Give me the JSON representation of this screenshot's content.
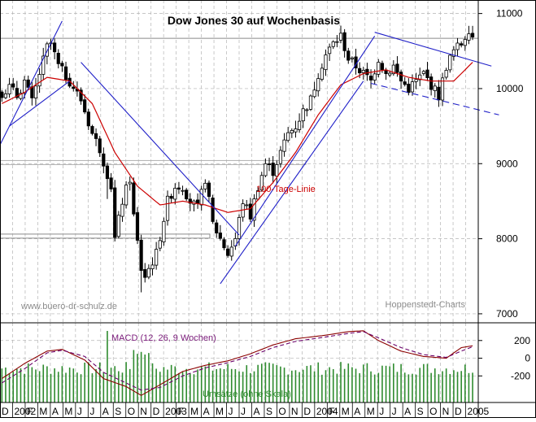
{
  "chart_data": [
    {
      "type": "candlestick",
      "title": "Dow Jones 30 auf Wochenbasis",
      "watermark_left": "www.buero-dr-schulz.de",
      "watermark_right": "Hoppenstedt-Charts",
      "y_axis_position": "right",
      "ylim": [
        6880,
        11180
      ],
      "yticks": [
        7000,
        8000,
        9000,
        10000,
        11000
      ],
      "ytick_labels": [
        "7000",
        "8000",
        "9000",
        "10000",
        "11000"
      ],
      "x_month_labels": [
        "D",
        "2002",
        "F",
        "M",
        "A",
        "M",
        "J",
        "J",
        "A",
        "S",
        "O",
        "N",
        "D",
        "2003",
        "F",
        "M",
        "A",
        "M",
        "J",
        "J",
        "A",
        "S",
        "O",
        "N",
        "D",
        "2004",
        "F",
        "M",
        "A",
        "M",
        "J",
        "J",
        "A",
        "S",
        "O",
        "N",
        "D",
        "2005"
      ],
      "grid": true,
      "annotations": [
        {
          "text": "100-Tage-Linie",
          "color": "#cc0000"
        }
      ],
      "horizontal_levels": [
        10670,
        9020,
        8040
      ],
      "weekly_close_anchors": [
        {
          "w": 0,
          "v": 9950
        },
        {
          "w": 2,
          "v": 10020
        },
        {
          "w": 4,
          "v": 9900
        },
        {
          "w": 6,
          "v": 10100
        },
        {
          "w": 8,
          "v": 9820
        },
        {
          "w": 10,
          "v": 10200
        },
        {
          "w": 12,
          "v": 10550
        },
        {
          "w": 13,
          "v": 10600
        },
        {
          "w": 15,
          "v": 10300
        },
        {
          "w": 18,
          "v": 10100
        },
        {
          "w": 21,
          "v": 9850
        },
        {
          "w": 24,
          "v": 9400
        },
        {
          "w": 26,
          "v": 9200
        },
        {
          "w": 29,
          "v": 8700
        },
        {
          "w": 30,
          "v": 8000
        },
        {
          "w": 32,
          "v": 8500
        },
        {
          "w": 34,
          "v": 8800
        },
        {
          "w": 35,
          "v": 8300
        },
        {
          "w": 37,
          "v": 7600
        },
        {
          "w": 38,
          "v": 7500
        },
        {
          "w": 41,
          "v": 7800
        },
        {
          "w": 44,
          "v": 8500
        },
        {
          "w": 46,
          "v": 8700
        },
        {
          "w": 48,
          "v": 8700
        },
        {
          "w": 50,
          "v": 8500
        },
        {
          "w": 52,
          "v": 8400
        },
        {
          "w": 54,
          "v": 8800
        },
        {
          "w": 56,
          "v": 8200
        },
        {
          "w": 58,
          "v": 8000
        },
        {
          "w": 60,
          "v": 7800
        },
        {
          "w": 62,
          "v": 8000
        },
        {
          "w": 64,
          "v": 8500
        },
        {
          "w": 66,
          "v": 8300
        },
        {
          "w": 68,
          "v": 8700
        },
        {
          "w": 70,
          "v": 9000
        },
        {
          "w": 72,
          "v": 8900
        },
        {
          "w": 74,
          "v": 9150
        },
        {
          "w": 76,
          "v": 9400
        },
        {
          "w": 78,
          "v": 9500
        },
        {
          "w": 80,
          "v": 9700
        },
        {
          "w": 82,
          "v": 9850
        },
        {
          "w": 84,
          "v": 10200
        },
        {
          "w": 86,
          "v": 10450
        },
        {
          "w": 88,
          "v": 10600
        },
        {
          "w": 90,
          "v": 10700
        },
        {
          "w": 92,
          "v": 10400
        },
        {
          "w": 94,
          "v": 10300
        },
        {
          "w": 96,
          "v": 10200
        },
        {
          "w": 98,
          "v": 10100
        },
        {
          "w": 100,
          "v": 10400
        },
        {
          "w": 102,
          "v": 10200
        },
        {
          "w": 104,
          "v": 10300
        },
        {
          "w": 106,
          "v": 10100
        },
        {
          "w": 108,
          "v": 10000
        },
        {
          "w": 110,
          "v": 10100
        },
        {
          "w": 112,
          "v": 10200
        },
        {
          "w": 114,
          "v": 10050
        },
        {
          "w": 116,
          "v": 9900
        },
        {
          "w": 118,
          "v": 10300
        },
        {
          "w": 120,
          "v": 10500
        },
        {
          "w": 122,
          "v": 10600
        },
        {
          "w": 124,
          "v": 10800
        },
        {
          "w": 125,
          "v": 10700
        }
      ],
      "moving_average_anchors": [
        {
          "w": 0,
          "v": 9800
        },
        {
          "w": 6,
          "v": 9950
        },
        {
          "w": 12,
          "v": 10150
        },
        {
          "w": 18,
          "v": 10100
        },
        {
          "w": 24,
          "v": 9800
        },
        {
          "w": 30,
          "v": 9150
        },
        {
          "w": 36,
          "v": 8700
        },
        {
          "w": 42,
          "v": 8450
        },
        {
          "w": 48,
          "v": 8500
        },
        {
          "w": 54,
          "v": 8450
        },
        {
          "w": 60,
          "v": 8350
        },
        {
          "w": 66,
          "v": 8400
        },
        {
          "w": 72,
          "v": 8750
        },
        {
          "w": 78,
          "v": 9150
        },
        {
          "w": 84,
          "v": 9650
        },
        {
          "w": 90,
          "v": 10050
        },
        {
          "w": 96,
          "v": 10200
        },
        {
          "w": 102,
          "v": 10250
        },
        {
          "w": 108,
          "v": 10150
        },
        {
          "w": 114,
          "v": 10100
        },
        {
          "w": 120,
          "v": 10100
        },
        {
          "w": 125,
          "v": 10350
        }
      ],
      "trend_lines": [
        {
          "from": {
            "w": -1,
            "v": 9200
          },
          "to": {
            "w": 16,
            "v": 10900
          }
        },
        {
          "from": {
            "w": 2,
            "v": 9500
          },
          "to": {
            "w": 18,
            "v": 10100
          }
        },
        {
          "from": {
            "w": 21,
            "v": 10350
          },
          "to": {
            "w": 63,
            "v": 8050
          }
        },
        {
          "from": {
            "w": 58,
            "v": 7400
          },
          "to": {
            "w": 96,
            "v": 10100
          }
        },
        {
          "from": {
            "w": 62,
            "v": 7900
          },
          "to": {
            "w": 99,
            "v": 10700
          }
        },
        {
          "from": {
            "w": 99,
            "v": 10750
          },
          "to": {
            "w": 130,
            "v": 10300
          }
        },
        {
          "from": {
            "w": 98,
            "v": 10070
          },
          "to": {
            "w": 132,
            "v": 9650
          }
        }
      ]
    },
    {
      "type": "line+bar",
      "title": "MACD (12, 26, 9 Wochen)",
      "volume_label": "Umsätze (ohne Skala)",
      "y_axis_position": "right",
      "ylim": [
        -500,
        400
      ],
      "yticks": [
        200,
        0,
        -200
      ],
      "ytick_labels": [
        "200",
        "0",
        "-200"
      ],
      "colors": {
        "macd": "#8b0000",
        "signal": "#6a006a",
        "volume": "#2e8b2e",
        "text_macd": "#7a1a7a",
        "text_volume": "#2e8b2e"
      },
      "series": [
        {
          "anchors": [
            {
              "w": 0,
              "v": -230
            },
            {
              "w": 6,
              "v": -60
            },
            {
              "w": 12,
              "v": 80
            },
            {
              "w": 16,
              "v": 100
            },
            {
              "w": 22,
              "v": -20
            },
            {
              "w": 27,
              "v": -230
            },
            {
              "w": 33,
              "v": -320
            },
            {
              "w": 37,
              "v": -420
            },
            {
              "w": 42,
              "v": -300
            },
            {
              "w": 48,
              "v": -150
            },
            {
              "w": 54,
              "v": -80
            },
            {
              "w": 60,
              "v": -30
            },
            {
              "w": 66,
              "v": 50
            },
            {
              "w": 72,
              "v": 150
            },
            {
              "w": 78,
              "v": 220
            },
            {
              "w": 86,
              "v": 260
            },
            {
              "w": 92,
              "v": 300
            },
            {
              "w": 96,
              "v": 310
            },
            {
              "w": 100,
              "v": 200
            },
            {
              "w": 106,
              "v": 80
            },
            {
              "w": 112,
              "v": 20
            },
            {
              "w": 118,
              "v": 0
            },
            {
              "w": 122,
              "v": 120
            },
            {
              "w": 125,
              "v": 140
            }
          ]
        },
        {
          "anchors": [
            {
              "w": 0,
              "v": -280
            },
            {
              "w": 6,
              "v": -120
            },
            {
              "w": 12,
              "v": 60
            },
            {
              "w": 16,
              "v": 90
            },
            {
              "w": 22,
              "v": 20
            },
            {
              "w": 27,
              "v": -160
            },
            {
              "w": 33,
              "v": -280
            },
            {
              "w": 37,
              "v": -360
            },
            {
              "w": 42,
              "v": -330
            },
            {
              "w": 48,
              "v": -200
            },
            {
              "w": 54,
              "v": -110
            },
            {
              "w": 60,
              "v": -50
            },
            {
              "w": 66,
              "v": 20
            },
            {
              "w": 72,
              "v": 120
            },
            {
              "w": 78,
              "v": 190
            },
            {
              "w": 86,
              "v": 240
            },
            {
              "w": 92,
              "v": 280
            },
            {
              "w": 96,
              "v": 300
            },
            {
              "w": 100,
              "v": 230
            },
            {
              "w": 106,
              "v": 120
            },
            {
              "w": 112,
              "v": 40
            },
            {
              "w": 118,
              "v": 10
            },
            {
              "w": 122,
              "v": 80
            },
            {
              "w": 125,
              "v": 130
            }
          ]
        }
      ]
    }
  ]
}
